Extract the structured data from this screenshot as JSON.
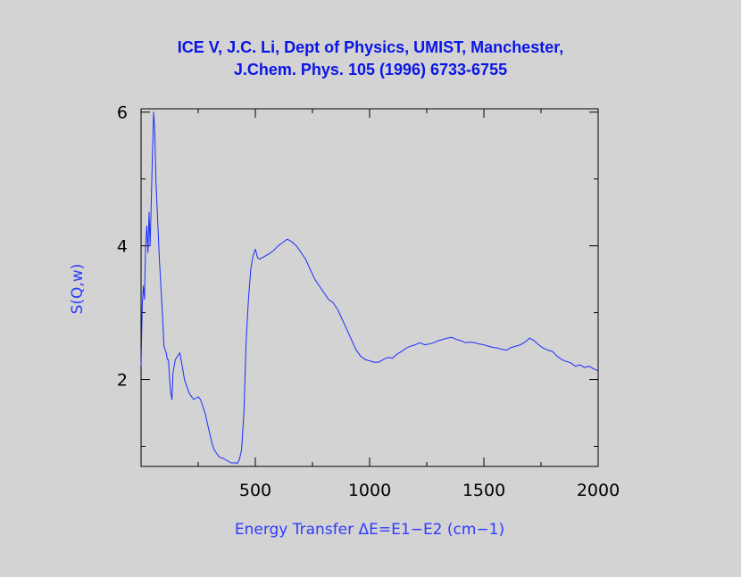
{
  "colors": {
    "background": "#d3d3d3",
    "title": "#0a15e6",
    "series": "#1a2bff",
    "axis_labels": "#2d3bff",
    "ticks": "#000000"
  },
  "chart_data": {
    "type": "line",
    "title_line1": "ICE V, J.C. Li, Dept of Physics, UMIST, Manchester,",
    "title_line2": "J.Chem. Phys. 105 (1996) 6733-6755",
    "xlabel": "Energy Transfer ΔE=E1−E2 (cm−1)",
    "ylabel": "S(Q,w)",
    "xlim": [
      0,
      2000
    ],
    "ylim": [
      0.7,
      6.05
    ],
    "xticks": [
      500,
      1000,
      1500,
      2000
    ],
    "xtick_labels": [
      "500",
      "1000",
      "1500",
      "2000"
    ],
    "yticks": [
      2,
      4,
      6
    ],
    "ytick_labels": [
      "2",
      "4",
      "6"
    ],
    "grid": false,
    "series": [
      {
        "x": [
          0,
          5,
          10,
          15,
          20,
          25,
          30,
          35,
          40,
          45,
          50,
          55,
          60,
          65,
          70,
          75,
          80,
          85,
          90,
          95,
          100,
          110,
          115,
          120,
          125,
          130,
          135,
          140,
          145,
          150,
          160,
          170,
          180,
          185,
          190,
          200,
          210,
          220,
          230,
          240,
          250,
          260,
          270,
          280,
          290,
          300,
          310,
          320,
          330,
          340,
          350,
          360,
          370,
          380,
          390,
          400,
          410,
          420,
          430,
          440,
          450,
          460,
          470,
          480,
          490,
          500,
          510,
          520,
          540,
          560,
          580,
          600,
          620,
          640,
          660,
          680,
          700,
          720,
          740,
          760,
          780,
          800,
          820,
          840,
          860,
          880,
          900,
          920,
          940,
          960,
          980,
          1000,
          1020,
          1040,
          1060,
          1080,
          1100,
          1120,
          1140,
          1160,
          1180,
          1200,
          1220,
          1240,
          1260,
          1280,
          1300,
          1320,
          1340,
          1360,
          1380,
          1400,
          1420,
          1440,
          1460,
          1480,
          1500,
          1520,
          1540,
          1560,
          1580,
          1600,
          1620,
          1640,
          1660,
          1680,
          1700,
          1720,
          1740,
          1760,
          1780,
          1800,
          1820,
          1840,
          1860,
          1880,
          1900,
          1920,
          1940,
          1960,
          1980,
          2000
        ],
        "y": [
          2.2,
          3.1,
          3.4,
          3.2,
          4.0,
          4.3,
          3.9,
          4.5,
          4.0,
          4.7,
          5.4,
          6.0,
          5.7,
          5.0,
          4.6,
          4.2,
          3.8,
          3.5,
          3.2,
          2.9,
          2.5,
          2.4,
          2.3,
          2.3,
          2.0,
          1.8,
          1.7,
          2.1,
          2.2,
          2.3,
          2.35,
          2.4,
          2.2,
          2.1,
          2.0,
          1.9,
          1.8,
          1.75,
          1.7,
          1.72,
          1.74,
          1.7,
          1.6,
          1.5,
          1.35,
          1.2,
          1.05,
          0.95,
          0.9,
          0.85,
          0.83,
          0.82,
          0.8,
          0.78,
          0.76,
          0.75,
          0.76,
          0.74,
          0.8,
          0.95,
          1.5,
          2.6,
          3.2,
          3.65,
          3.85,
          3.95,
          3.82,
          3.8,
          3.84,
          3.88,
          3.93,
          4.0,
          4.05,
          4.1,
          4.06,
          4.0,
          3.9,
          3.8,
          3.65,
          3.5,
          3.4,
          3.3,
          3.2,
          3.15,
          3.05,
          2.9,
          2.75,
          2.6,
          2.45,
          2.35,
          2.3,
          2.28,
          2.26,
          2.26,
          2.3,
          2.33,
          2.32,
          2.38,
          2.42,
          2.47,
          2.5,
          2.52,
          2.55,
          2.52,
          2.53,
          2.55,
          2.58,
          2.6,
          2.62,
          2.63,
          2.6,
          2.58,
          2.55,
          2.56,
          2.55,
          2.53,
          2.52,
          2.5,
          2.48,
          2.47,
          2.45,
          2.44,
          2.48,
          2.5,
          2.52,
          2.56,
          2.62,
          2.58,
          2.52,
          2.47,
          2.44,
          2.42,
          2.35,
          2.3,
          2.27,
          2.25,
          2.2,
          2.22,
          2.18,
          2.2,
          2.16,
          2.13
        ]
      }
    ]
  }
}
